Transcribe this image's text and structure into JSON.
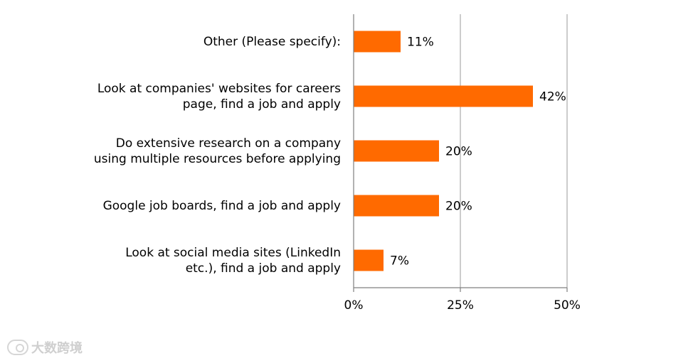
{
  "chart_data": {
    "type": "bar",
    "orientation": "horizontal",
    "categories": [
      [
        "Other (Please specify):"
      ],
      [
        "Look at companies' websites for careers",
        "page, find a job and apply"
      ],
      [
        "Do extensive research on a company",
        "using multiple resources before applying"
      ],
      [
        "Google job boards, find a job and apply"
      ],
      [
        "Look at social media sites (LinkedIn",
        "etc.), find a job and apply"
      ]
    ],
    "values": [
      11,
      42,
      20,
      20,
      7
    ],
    "data_labels": [
      "11%",
      "42%",
      "20%",
      "20%",
      "7%"
    ],
    "x_ticks": [
      0,
      25,
      50
    ],
    "x_tick_labels": [
      "0%",
      "25%",
      "50%"
    ],
    "xlim": [
      0,
      50
    ],
    "grid": "vertical",
    "bar_color": "#ff6a00",
    "title": "",
    "xlabel": "",
    "ylabel": ""
  },
  "watermark": {
    "text": "大数跨境"
  }
}
